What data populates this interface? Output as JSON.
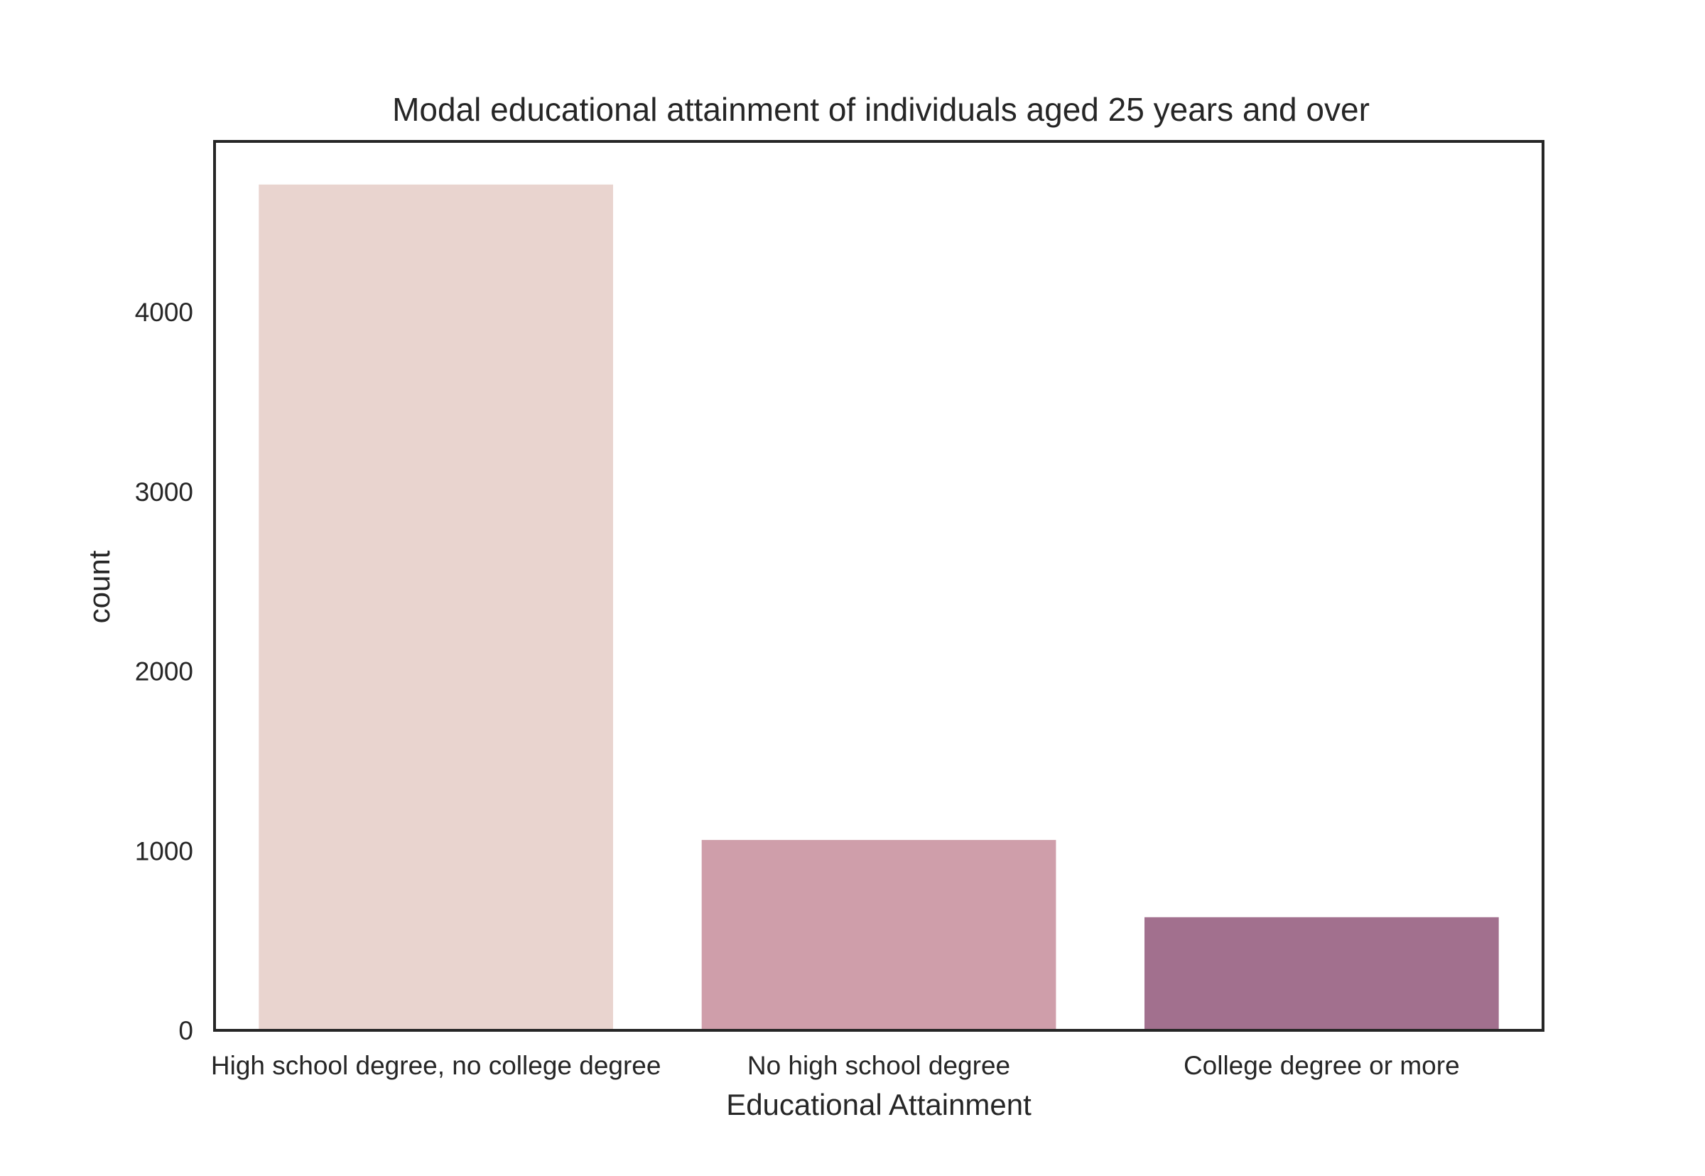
{
  "chart_data": {
    "type": "bar",
    "title": "Modal educational attainment of individuals aged 25 years and over",
    "xlabel": "Educational Attainment",
    "ylabel": "count",
    "categories": [
      "High school degree, no college degree",
      "No high school degree",
      "College degree or more"
    ],
    "values": [
      4710,
      1060,
      630
    ],
    "ylim": [
      0,
      4950
    ],
    "yticks": [
      0,
      1000,
      2000,
      3000,
      4000
    ],
    "colors": [
      "#e9d4cf",
      "#cf9eaa",
      "#a2708e"
    ],
    "grid": false,
    "legend": "none"
  }
}
